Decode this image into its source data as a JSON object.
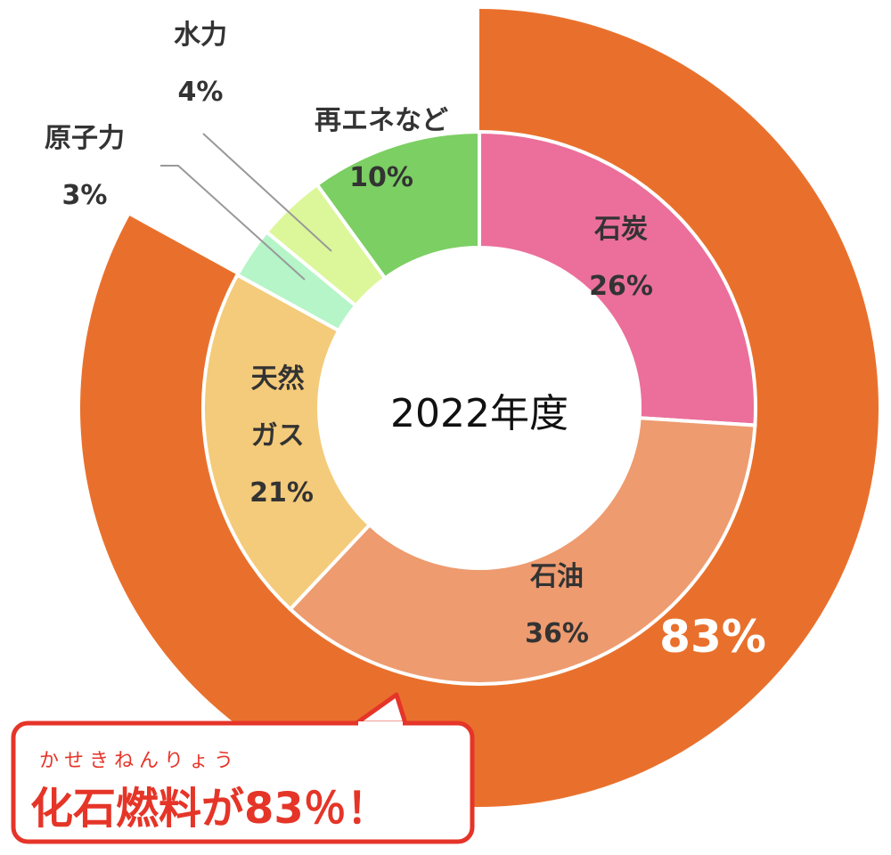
{
  "chart_data": {
    "type": "donut",
    "center_label": "2022年度",
    "categories": [
      "石炭",
      "石油",
      "天然ガス",
      "原子力",
      "水力",
      "再エネなど"
    ],
    "values": [
      26,
      36,
      21,
      3,
      4,
      10
    ],
    "value_labels": [
      "26%",
      "36%",
      "21%",
      "3%",
      "4%",
      "10%"
    ],
    "colors": [
      "#eb6f9a",
      "#ee9b6f",
      "#f4cb7a",
      "#b5f5c8",
      "#dcf79a",
      "#7ccf63"
    ],
    "outer": {
      "values": [
        83
      ],
      "value_labels": [
        "83%"
      ],
      "color": "#e9702c"
    },
    "callout": {
      "ruby": "かせきねんりょう",
      "text": "化石燃料が83％！"
    }
  }
}
